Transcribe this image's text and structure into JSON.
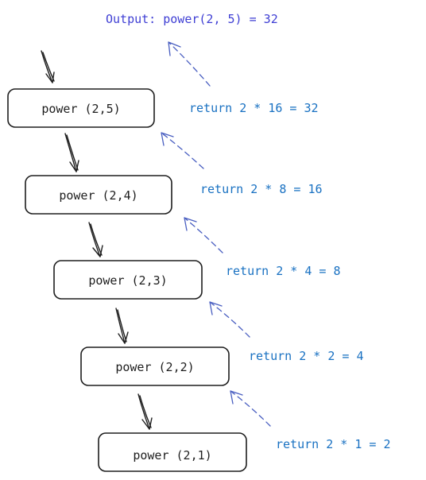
{
  "output_label": "Output: power(2, 5) = 32",
  "nodes": [
    {
      "label": "power (2,5)"
    },
    {
      "label": "power (2,4)"
    },
    {
      "label": "power (2,3)"
    },
    {
      "label": "power (2,2)"
    },
    {
      "label": "power (2,1)"
    }
  ],
  "returns": [
    {
      "label": "return 2 * 16 = 32"
    },
    {
      "label": "return 2 * 8 = 16"
    },
    {
      "label": "return 2 * 4 = 8"
    },
    {
      "label": "return 2 * 2 = 4"
    },
    {
      "label": "return 2 * 1 = 2"
    }
  ],
  "colors": {
    "ink": "#1e1e1e",
    "return_text": "#1971c2",
    "output_text": "#3f3fd4",
    "return_arrow": "#4a5fc1"
  }
}
